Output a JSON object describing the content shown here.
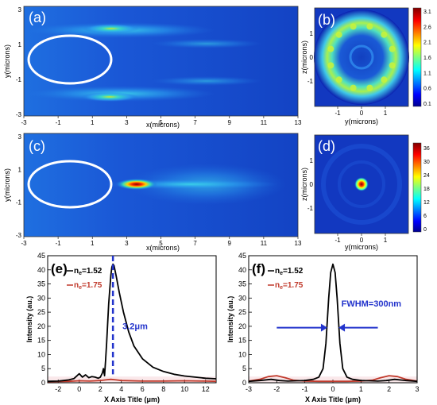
{
  "panels": {
    "a": {
      "label": "(a)",
      "xlabel": "x(microns)",
      "ylabel": "y(microns)",
      "xticks": [
        "-3",
        "-1",
        "1",
        "3",
        "5",
        "7",
        "9",
        "11",
        "13"
      ],
      "yticks": [
        "3",
        "1",
        "-1",
        "-3"
      ]
    },
    "b": {
      "label": "(b)",
      "xlabel": "y(microns)",
      "ylabel": "z(microns)",
      "xticks": [
        "-1",
        "0",
        "1"
      ],
      "yticks": [
        "1",
        "0",
        "-1"
      ],
      "colorbar": [
        "3.1",
        "2.6",
        "2.1",
        "1.6",
        "1.1",
        "0.6",
        "0.1"
      ]
    },
    "c": {
      "label": "(c)",
      "xlabel": "x(microns)",
      "ylabel": "y(microns)",
      "xticks": [
        "-3",
        "-1",
        "1",
        "3",
        "5",
        "7",
        "9",
        "11",
        "13"
      ],
      "yticks": [
        "3",
        "1",
        "-1",
        "-3"
      ]
    },
    "d": {
      "label": "(d)",
      "xlabel": "y(microns)",
      "ylabel": "z(microns)",
      "xticks": [
        "-1",
        "0",
        "1"
      ],
      "yticks": [
        "1",
        "0",
        "-1"
      ],
      "colorbar": [
        "36",
        "30",
        "24",
        "18",
        "12",
        "6",
        "0"
      ]
    }
  },
  "chart_data": [
    {
      "type": "line",
      "panel": "(e)",
      "xlabel": "X Axis Title (μm)",
      "ylabel": "Intensity (au.)",
      "xlim": [
        -3,
        13
      ],
      "ylim": [
        0,
        45
      ],
      "xticks": [
        "-2",
        "0",
        "2",
        "4",
        "6",
        "8",
        "10",
        "12"
      ],
      "yticks": [
        "0",
        "5",
        "10",
        "15",
        "20",
        "25",
        "30",
        "35",
        "40",
        "45"
      ],
      "annotation": "3.2μm",
      "legend": [
        {
          "prefix": "n",
          "sub": "e",
          "suffix": "=1.52",
          "color": "#000000"
        },
        {
          "prefix": "n",
          "sub": "e",
          "suffix": "=1.75",
          "color": "#c0392b"
        }
      ],
      "series": [
        {
          "name": "ne=1.52",
          "color": "#000000",
          "x": [
            -3,
            -2,
            -1.5,
            -1,
            -0.5,
            0,
            0.3,
            0.6,
            0.9,
            1.2,
            1.5,
            1.8,
            2.0,
            2.2,
            2.3,
            2.4,
            2.5,
            2.6,
            2.8,
            3.0,
            3.1,
            3.2,
            3.3,
            3.5,
            3.8,
            4.2,
            4.7,
            5.2,
            6,
            7,
            8,
            9,
            10,
            11,
            12,
            13
          ],
          "y": [
            0.5,
            0.6,
            0.8,
            1.0,
            1.5,
            3.2,
            2.0,
            2.8,
            1.8,
            2.2,
            2.0,
            1.6,
            2.0,
            3.5,
            5.0,
            2.5,
            8.0,
            14.0,
            28.0,
            38.0,
            41.0,
            42.0,
            41.5,
            38.0,
            32.0,
            25.0,
            18.0,
            13.0,
            8.5,
            5.5,
            4.0,
            3.0,
            2.4,
            2.0,
            1.6,
            1.4
          ]
        },
        {
          "name": "ne=1.75",
          "color": "#c0392b",
          "x": [
            -3,
            -1,
            0,
            1,
            2,
            2.5,
            3,
            3.5,
            4,
            6,
            8,
            10,
            12,
            13
          ],
          "y": [
            0.4,
            0.5,
            0.7,
            0.6,
            0.8,
            1.0,
            1.2,
            1.0,
            0.8,
            0.6,
            0.6,
            0.7,
            0.6,
            0.5
          ]
        }
      ]
    },
    {
      "type": "line",
      "panel": "(f)",
      "xlabel": "X Axis Title (μm)",
      "ylabel": "Intensity (au.)",
      "xlim": [
        -3,
        3
      ],
      "ylim": [
        0,
        45
      ],
      "xticks": [
        "-3",
        "-2",
        "-1",
        "0",
        "1",
        "2",
        "3"
      ],
      "yticks": [
        "0",
        "5",
        "10",
        "15",
        "20",
        "25",
        "30",
        "35",
        "40",
        "45"
      ],
      "annotation": "FWHM=300nm",
      "legend": [
        {
          "prefix": "n",
          "sub": "e",
          "suffix": "=1.52",
          "color": "#000000"
        },
        {
          "prefix": "n",
          "sub": "e",
          "suffix": "=1.75",
          "color": "#c0392b"
        }
      ],
      "series": [
        {
          "name": "ne=1.52",
          "color": "#000000",
          "x": [
            -3,
            -2.6,
            -2.2,
            -1.9,
            -1.6,
            -1.3,
            -1.0,
            -0.7,
            -0.5,
            -0.35,
            -0.25,
            -0.15,
            -0.08,
            0,
            0.08,
            0.15,
            0.25,
            0.35,
            0.5,
            0.7,
            1.0,
            1.3,
            1.6,
            1.9,
            2.2,
            2.6,
            3
          ],
          "y": [
            0.5,
            0.8,
            1.2,
            0.8,
            0.6,
            0.7,
            0.8,
            1.2,
            2.0,
            5.0,
            14.0,
            30.0,
            39.0,
            42.0,
            39.0,
            30.0,
            14.0,
            5.0,
            2.0,
            1.2,
            0.8,
            0.7,
            0.6,
            0.8,
            1.2,
            0.8,
            0.5
          ]
        },
        {
          "name": "ne=1.75",
          "color": "#c0392b",
          "x": [
            -3,
            -2.6,
            -2.3,
            -2.0,
            -1.7,
            -1.4,
            -1.0,
            -0.5,
            0,
            0.5,
            1.0,
            1.4,
            1.7,
            2.0,
            2.3,
            2.6,
            3
          ],
          "y": [
            0.6,
            1.2,
            2.2,
            2.5,
            1.8,
            0.9,
            0.6,
            0.5,
            0.5,
            0.5,
            0.6,
            0.9,
            1.8,
            2.5,
            2.2,
            1.2,
            0.6
          ]
        }
      ]
    }
  ]
}
